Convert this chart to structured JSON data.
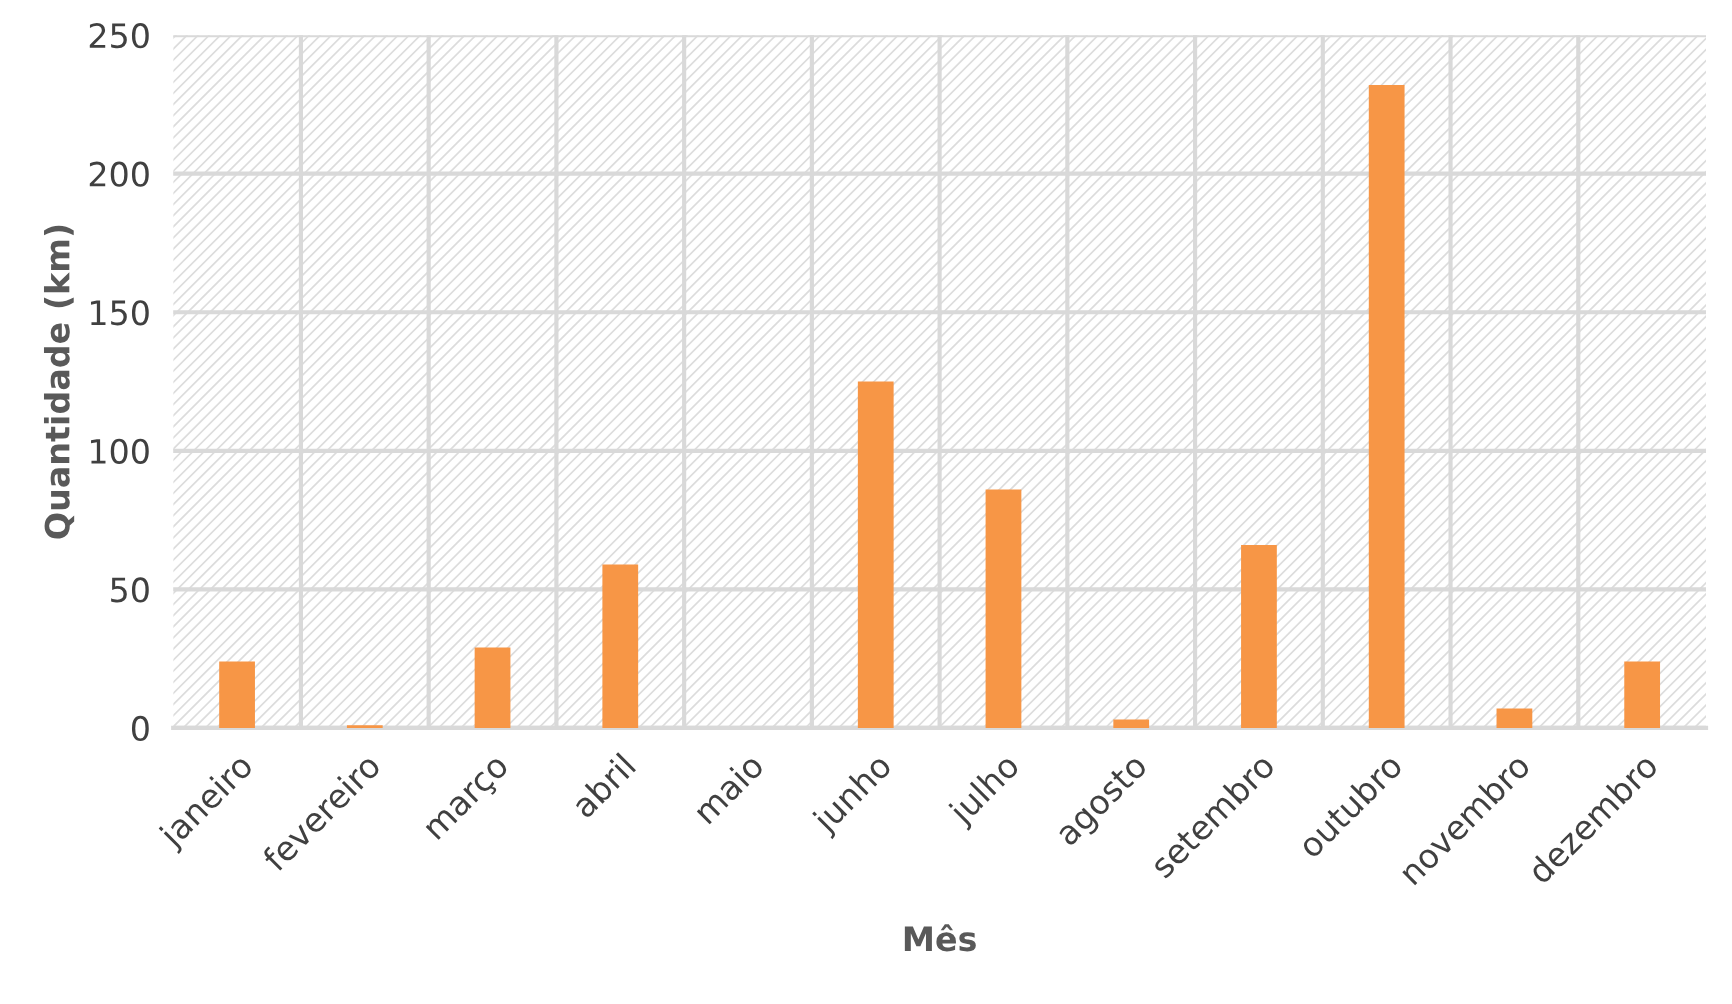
{
  "chart_data": {
    "type": "bar",
    "xlabel": "Mês",
    "ylabel": "Quantidade (km)",
    "categories": [
      "janeiro",
      "fevereiro",
      "março",
      "abril",
      "maio",
      "junho",
      "julho",
      "agosto",
      "setembro",
      "outubro",
      "novembro",
      "dezembro"
    ],
    "values": [
      24,
      1,
      29,
      59,
      0,
      125,
      86,
      3,
      66,
      232,
      7,
      24
    ],
    "color": "#f79646",
    "ylim": [
      0,
      250
    ],
    "yticks": [
      0,
      50,
      100,
      150,
      200,
      250
    ],
    "grid": true
  }
}
